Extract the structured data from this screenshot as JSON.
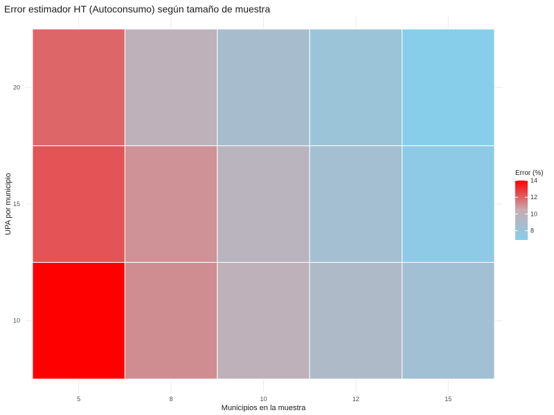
{
  "chart_data": {
    "type": "heatmap",
    "title": "Error estimador HT (Autoconsumo) según tamaño de muestra",
    "xlabel": "Municipios en la muestra",
    "ylabel": "UPA por municipio",
    "x_categories": [
      "5",
      "8",
      "10",
      "12",
      "15"
    ],
    "y_categories": [
      "10",
      "15",
      "20"
    ],
    "values": [
      [
        14.0,
        11.1,
        10.0,
        9.1,
        8.4
      ],
      [
        12.3,
        11.0,
        9.7,
        8.5,
        7.3
      ],
      [
        11.9,
        10.0,
        8.7,
        8.0,
        6.9
      ]
    ],
    "legend": {
      "title": "Error (%)",
      "ticks": [
        8,
        10,
        12,
        14
      ],
      "range": [
        6.9,
        14.0
      ],
      "low_color": "#87CEEB",
      "mid_color": "#C6ADB2",
      "high_color": "#FF0000",
      "placement": "right"
    },
    "grid": true
  }
}
